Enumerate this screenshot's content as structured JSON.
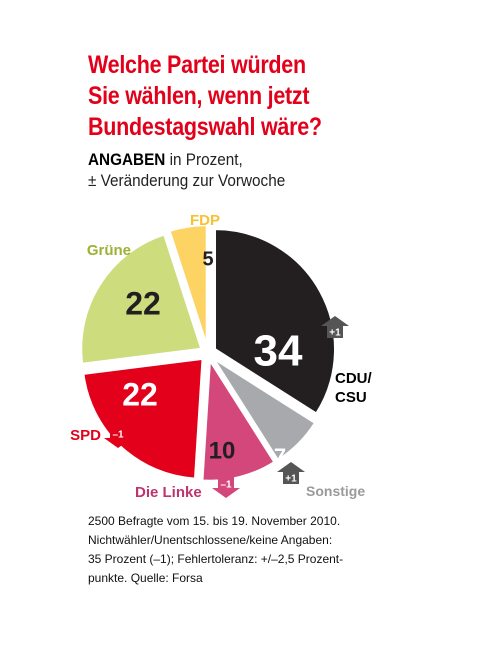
{
  "title_lines": [
    "Welche Partei würden",
    "Sie wählen, wenn jetzt",
    "Bundestagswahl wäre?"
  ],
  "subtitle": {
    "bold": "ANGABEN",
    "rest": " in Prozent,",
    "line2": "± Veränderung zur Vorwoche"
  },
  "colors": {
    "title": "#e2001a",
    "arrow": "#555555"
  },
  "footnote_lines": [
    "2500 Befragte vom 15. bis 19. November 2010.",
    "Nichtwähler/Unentschlossene/keine Angaben:",
    "35 Prozent (–1); Fehlertoleranz: +/–2,5 Prozent-",
    "punkte. Quelle: Forsa"
  ],
  "chart_data": {
    "type": "pie",
    "slices": [
      {
        "key": "cdu",
        "label": "CDU/\nCSU",
        "value": 34,
        "change": "+1",
        "color": "#231f20",
        "value_color": "#ffffff",
        "label_color": "#000000"
      },
      {
        "key": "sonstige",
        "label": "Sonstige",
        "value": 7,
        "change": "+1",
        "color": "#a7a9ac",
        "value_color": "#ffffff",
        "label_color": "#9a9a9a"
      },
      {
        "key": "linke",
        "label": "Die Linke",
        "value": 10,
        "change": "–1",
        "color": "#d4477a",
        "value_color": "#231f20",
        "label_color": "#c03270"
      },
      {
        "key": "spd",
        "label": "SPD",
        "value": 22,
        "change": "–1",
        "color": "#e2001a",
        "value_color": "#ffffff",
        "label_color": "#e2001a"
      },
      {
        "key": "gruene",
        "label": "Grüne",
        "value": 22,
        "change": "",
        "color": "#cddc7d",
        "value_color": "#231f20",
        "label_color": "#9cb135"
      },
      {
        "key": "fdp",
        "label": "FDP",
        "value": 5,
        "change": "",
        "color": "#fdd464",
        "value_color": "#231f20",
        "label_color": "#f7c232"
      }
    ]
  }
}
